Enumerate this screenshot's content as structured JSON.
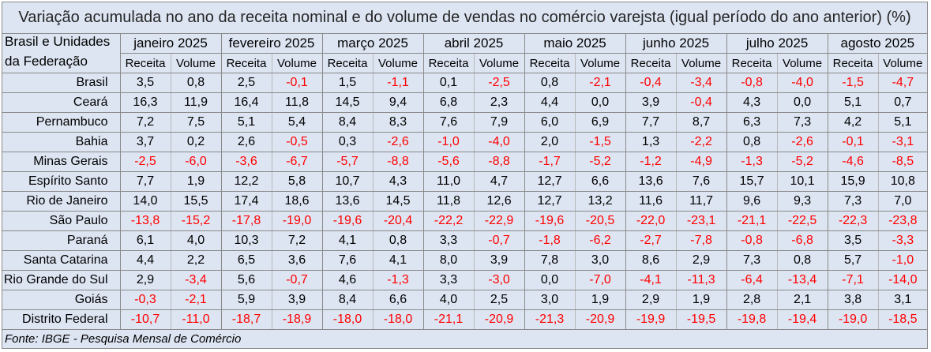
{
  "title": "Variação acumulada no ano da receita nominal e do volume de vendas no comércio varejsta (igual período do ano anterior) (%)",
  "header": {
    "label_line1": "Brasil e Unidades",
    "label_line2": "da Federação",
    "months": [
      "janeiro 2025",
      "fevereiro 2025",
      "março 2025",
      "abril 2025",
      "maio 2025",
      "junho 2025",
      "julho 2025",
      "agosto 2025"
    ],
    "receita_label": "Receita",
    "volume_label": "Volume"
  },
  "rows": [
    {
      "region": "Brasil",
      "values": [
        "3,5",
        "0,8",
        "2,5",
        "-0,1",
        "1,5",
        "-1,1",
        "0,1",
        "-2,5",
        "0,8",
        "-2,1",
        "-0,4",
        "-3,4",
        "-0,8",
        "-4,0",
        "-1,5",
        "-4,7"
      ]
    },
    {
      "region": "Ceará",
      "values": [
        "16,3",
        "11,9",
        "16,4",
        "11,8",
        "14,5",
        "9,4",
        "6,8",
        "2,3",
        "4,4",
        "0,0",
        "3,9",
        "-0,4",
        "4,3",
        "0,0",
        "5,1",
        "0,7"
      ]
    },
    {
      "region": "Pernambuco",
      "values": [
        "7,2",
        "7,5",
        "5,1",
        "5,4",
        "8,4",
        "8,3",
        "7,6",
        "7,9",
        "6,0",
        "6,9",
        "7,7",
        "8,7",
        "6,3",
        "7,3",
        "4,2",
        "5,1"
      ]
    },
    {
      "region": "Bahia",
      "values": [
        "3,7",
        "0,2",
        "2,6",
        "-0,5",
        "0,3",
        "-2,6",
        "-1,0",
        "-4,0",
        "2,0",
        "-1,5",
        "1,3",
        "-2,2",
        "0,8",
        "-2,6",
        "-0,1",
        "-3,1"
      ]
    },
    {
      "region": "Minas Gerais",
      "values": [
        "-2,5",
        "-6,0",
        "-3,6",
        "-6,7",
        "-5,7",
        "-8,8",
        "-5,6",
        "-8,8",
        "-1,7",
        "-5,2",
        "-1,2",
        "-4,9",
        "-1,3",
        "-5,2",
        "-4,6",
        "-8,5"
      ]
    },
    {
      "region": "Espírito Santo",
      "values": [
        "7,7",
        "1,9",
        "12,2",
        "5,8",
        "10,7",
        "4,3",
        "11,0",
        "4,7",
        "12,7",
        "6,6",
        "13,6",
        "7,6",
        "15,7",
        "10,1",
        "15,9",
        "10,8"
      ]
    },
    {
      "region": "Rio de Janeiro",
      "values": [
        "14,0",
        "15,5",
        "17,4",
        "18,6",
        "13,6",
        "14,5",
        "11,8",
        "12,6",
        "12,7",
        "13,2",
        "11,6",
        "11,7",
        "9,6",
        "9,3",
        "7,3",
        "7,0"
      ]
    },
    {
      "region": "São Paulo",
      "values": [
        "-13,8",
        "-15,2",
        "-17,8",
        "-19,0",
        "-19,6",
        "-20,4",
        "-22,2",
        "-22,9",
        "-19,6",
        "-20,5",
        "-22,0",
        "-23,1",
        "-21,1",
        "-22,5",
        "-22,3",
        "-23,8"
      ]
    },
    {
      "region": "Paraná",
      "values": [
        "6,1",
        "4,0",
        "10,3",
        "7,2",
        "4,1",
        "0,8",
        "3,3",
        "-0,7",
        "-1,8",
        "-6,2",
        "-2,7",
        "-7,8",
        "-0,8",
        "-6,8",
        "3,5",
        "-3,3"
      ]
    },
    {
      "region": "Santa Catarina",
      "values": [
        "4,4",
        "2,2",
        "6,5",
        "3,6",
        "7,6",
        "4,1",
        "8,0",
        "3,9",
        "7,8",
        "3,0",
        "8,6",
        "2,9",
        "7,3",
        "0,8",
        "5,7",
        "-1,0"
      ]
    },
    {
      "region": "Rio Grande do Sul",
      "values": [
        "2,9",
        "-3,4",
        "5,6",
        "-0,7",
        "4,6",
        "-1,3",
        "3,3",
        "-3,0",
        "0,0",
        "-7,0",
        "-4,1",
        "-11,3",
        "-6,4",
        "-13,4",
        "-7,1",
        "-14,0"
      ]
    },
    {
      "region": "Goiás",
      "values": [
        "-0,3",
        "-2,1",
        "5,9",
        "3,9",
        "8,4",
        "6,6",
        "4,0",
        "2,5",
        "3,0",
        "1,9",
        "2,9",
        "1,9",
        "2,8",
        "2,1",
        "3,8",
        "3,1"
      ]
    },
    {
      "region": "Distrito Federal",
      "values": [
        "-10,7",
        "-11,0",
        "-18,7",
        "-18,9",
        "-18,0",
        "-18,0",
        "-21,1",
        "-20,9",
        "-21,3",
        "-20,9",
        "-19,9",
        "-19,5",
        "-19,8",
        "-19,4",
        "-19,0",
        "-18,5"
      ]
    }
  ],
  "source": "Fonte: IBGE - Pesquisa Mensal de Comércio",
  "colors": {
    "background": "#dde5f2",
    "negative": "#ff0000",
    "positive": "#000000",
    "border": "#8a8a8a"
  }
}
